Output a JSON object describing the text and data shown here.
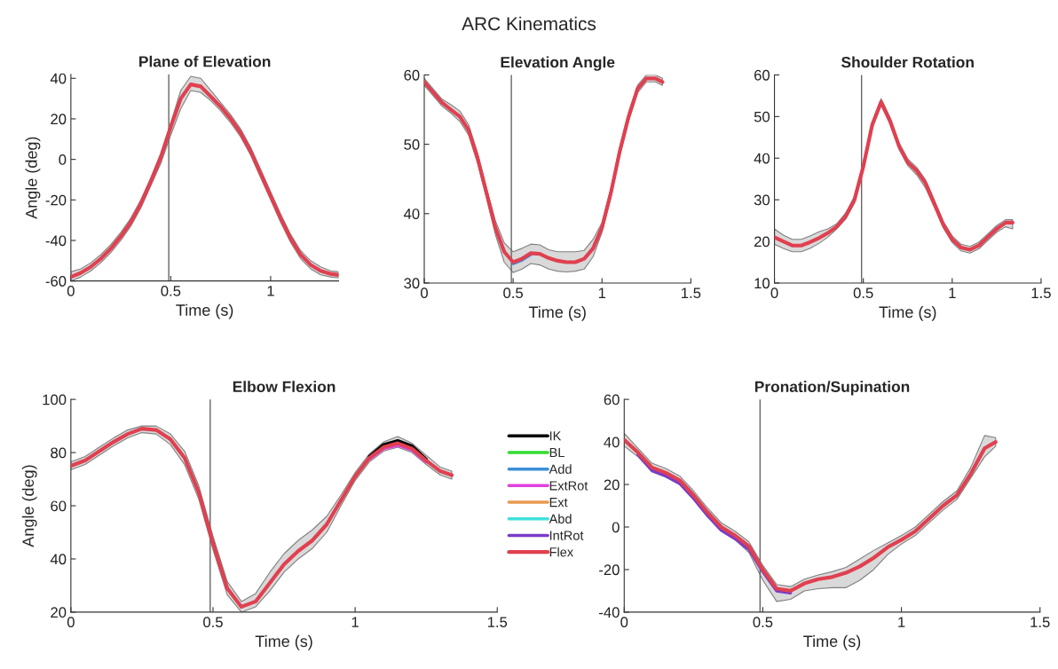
{
  "chart_data": [
    {
      "type": "other",
      "title": "ARC Kinematics"
    },
    {
      "type": "line",
      "title": "Plane of Elevation",
      "xlabel": "Time (s)",
      "ylabel": "Angle (deg)",
      "xlim": [
        0,
        1.34
      ],
      "ylim": [
        -60,
        42
      ],
      "xticks": [
        0,
        0.5,
        1
      ],
      "yticks": [
        -60,
        -40,
        -20,
        0,
        20,
        40
      ],
      "grid": false,
      "legend": false,
      "x": [
        0,
        0.05,
        0.1,
        0.15,
        0.2,
        0.25,
        0.3,
        0.35,
        0.4,
        0.45,
        0.5,
        0.55,
        0.6,
        0.65,
        0.7,
        0.75,
        0.8,
        0.85,
        0.9,
        0.95,
        1.0,
        1.05,
        1.1,
        1.15,
        1.2,
        1.25,
        1.3,
        1.34
      ],
      "ref_lines": [
        {
          "axis": "x",
          "value": 0.49,
          "color": "#666666"
        }
      ],
      "series": [
        {
          "color": "#e04050",
          "values": [
            -58,
            -56,
            -53,
            -49,
            -44,
            -38,
            -31,
            -22,
            -11,
            1,
            16,
            30,
            37,
            36,
            31,
            26,
            20,
            13,
            4,
            -7,
            -18,
            -29,
            -39,
            -47,
            -52,
            -55,
            -56.5,
            -57
          ],
          "lower": [
            -60,
            -58,
            -55,
            -51,
            -46,
            -40,
            -33,
            -24,
            -13,
            -2,
            12,
            25,
            34,
            33,
            29,
            24,
            18,
            11,
            2,
            -9,
            -20,
            -31,
            -41,
            -49,
            -54,
            -57,
            -58,
            -58.5
          ],
          "upper": [
            -55.5,
            -54,
            -51,
            -47,
            -42,
            -36,
            -29,
            -20,
            -9,
            3,
            18,
            34,
            41,
            40,
            34,
            28,
            22,
            15,
            6,
            -5,
            -16,
            -27,
            -37,
            -45,
            -50,
            -53,
            -55,
            -55.5
          ]
        }
      ]
    },
    {
      "type": "line",
      "title": "Elevation Angle",
      "xlabel": "Time (s)",
      "xlim": [
        0,
        1.5
      ],
      "ylim": [
        30,
        60
      ],
      "xticks": [
        0,
        0.5,
        1,
        1.5
      ],
      "yticks": [
        30,
        40,
        50,
        60
      ],
      "grid": false,
      "legend": false,
      "x": [
        0,
        0.05,
        0.1,
        0.15,
        0.2,
        0.25,
        0.3,
        0.35,
        0.4,
        0.45,
        0.5,
        0.55,
        0.6,
        0.65,
        0.7,
        0.75,
        0.8,
        0.85,
        0.9,
        0.95,
        1.0,
        1.05,
        1.1,
        1.15,
        1.2,
        1.25,
        1.3,
        1.34
      ],
      "ref_lines": [
        {
          "axis": "x",
          "value": 0.49,
          "color": "#666666"
        }
      ],
      "series": [
        {
          "color": "#3a8fd8",
          "x": [
            0.5,
            0.55,
            0.6
          ],
          "values": [
            32.8,
            33.3,
            34.1
          ]
        },
        {
          "color": "#e04050",
          "values": [
            59,
            57.5,
            56,
            55,
            54,
            52,
            48,
            43,
            38,
            34.5,
            33,
            33.5,
            34.3,
            34.2,
            33.6,
            33.2,
            33,
            33,
            33.5,
            35,
            38,
            43,
            49,
            54,
            58,
            59.5,
            59.5,
            59
          ],
          "lower": [
            58.5,
            57,
            55.5,
            54.5,
            53.3,
            51.3,
            47.3,
            42.3,
            37,
            33,
            31.5,
            32,
            32.8,
            32.6,
            32,
            31.7,
            31.6,
            31.7,
            32,
            33.8,
            37.3,
            42.4,
            48.4,
            53.4,
            57.4,
            59,
            59,
            58.5
          ],
          "upper": [
            59.5,
            58,
            56.5,
            55.7,
            54.8,
            52.8,
            48.7,
            43.7,
            39,
            35.8,
            34.5,
            35,
            35.6,
            35.5,
            34.8,
            34.5,
            34.5,
            34.5,
            34.7,
            36.3,
            38.7,
            43.6,
            49.6,
            54.6,
            58.5,
            60,
            60,
            59.5
          ]
        }
      ]
    },
    {
      "type": "line",
      "title": "Shoulder Rotation",
      "xlabel": "Time (s)",
      "xlim": [
        0,
        1.5
      ],
      "ylim": [
        10,
        60
      ],
      "xticks": [
        0,
        0.5,
        1,
        1.5
      ],
      "yticks": [
        10,
        20,
        30,
        40,
        50,
        60
      ],
      "grid": false,
      "legend": false,
      "x": [
        0,
        0.05,
        0.1,
        0.15,
        0.2,
        0.25,
        0.3,
        0.35,
        0.4,
        0.45,
        0.5,
        0.55,
        0.6,
        0.65,
        0.7,
        0.75,
        0.8,
        0.85,
        0.9,
        0.95,
        1.0,
        1.05,
        1.1,
        1.15,
        1.2,
        1.25,
        1.3,
        1.34
      ],
      "ref_lines": [
        {
          "axis": "x",
          "value": 0.49,
          "color": "#666666"
        }
      ],
      "series": [
        {
          "color": "#e04050",
          "values": [
            21,
            20,
            19,
            19,
            19.8,
            20.8,
            22,
            23.5,
            26,
            30,
            38,
            48,
            53.5,
            49,
            43,
            39,
            37,
            34,
            29,
            24,
            20.5,
            18.5,
            18,
            19,
            21,
            23,
            24.5,
            24.5
          ],
          "lower": [
            19.3,
            18.3,
            17.5,
            17.5,
            18.3,
            19.5,
            21,
            23,
            25.3,
            29.2,
            37.2,
            47.2,
            52.7,
            48.2,
            42.2,
            38.2,
            36,
            32.8,
            28.2,
            23.2,
            19.7,
            17.7,
            17.2,
            18.2,
            20.2,
            22.2,
            23.5,
            23
          ],
          "upper": [
            23,
            21.5,
            20.5,
            20.5,
            21.3,
            22.3,
            23,
            24.2,
            26.8,
            30.8,
            38.8,
            48.8,
            54.3,
            49.8,
            43.8,
            39.8,
            37.8,
            34.8,
            29.8,
            24.8,
            21.3,
            19.3,
            18.8,
            19.8,
            21.8,
            23.8,
            25.2,
            25.2
          ]
        }
      ]
    },
    {
      "type": "line",
      "title": "Elbow Flexion",
      "xlabel": "Time (s)",
      "ylabel": "Angle (deg)",
      "xlim": [
        0,
        1.5
      ],
      "ylim": [
        20,
        100
      ],
      "xticks": [
        0,
        0.5,
        1,
        1.5
      ],
      "yticks": [
        20,
        40,
        60,
        80,
        100
      ],
      "grid": false,
      "legend": "right",
      "x": [
        0,
        0.05,
        0.1,
        0.15,
        0.2,
        0.25,
        0.3,
        0.35,
        0.4,
        0.45,
        0.5,
        0.55,
        0.6,
        0.65,
        0.7,
        0.75,
        0.8,
        0.85,
        0.9,
        0.95,
        1.0,
        1.05,
        1.1,
        1.15,
        1.2,
        1.25,
        1.3,
        1.34
      ],
      "ref_lines": [
        {
          "axis": "x",
          "value": 0.49,
          "color": "#666666"
        }
      ],
      "series": [
        {
          "name": "IK",
          "color": "#000000",
          "x": [
            1.05,
            1.1,
            1.15,
            1.2,
            1.25
          ],
          "values": [
            78.5,
            83,
            84.5,
            82.5,
            77.5
          ]
        },
        {
          "name": "BL",
          "color": "#33dd33",
          "values": [
            null,
            null,
            null,
            null,
            null,
            null,
            null,
            null,
            null,
            null,
            null,
            null,
            null,
            null,
            null,
            null,
            null,
            null,
            null,
            null,
            null,
            null,
            null,
            null,
            null,
            null,
            null,
            null
          ]
        },
        {
          "name": "Add",
          "color": "#3a8fd8",
          "values": [
            null,
            null,
            null,
            null,
            null,
            null,
            null,
            null,
            null,
            null,
            null,
            null,
            null,
            null,
            null,
            null,
            null,
            null,
            null,
            null,
            null,
            null,
            null,
            null,
            null,
            null,
            null,
            null
          ]
        },
        {
          "name": "ExtRot",
          "color": "#e040e0",
          "x": [
            1.05,
            1.1,
            1.15,
            1.2,
            1.25
          ],
          "values": [
            77.5,
            81.5,
            82.8,
            81,
            76.5
          ]
        },
        {
          "name": "Ext",
          "color": "#e89a50",
          "values": [
            null,
            null,
            null,
            null,
            null,
            null,
            null,
            null,
            null,
            null,
            null,
            null,
            null,
            null,
            null,
            null,
            null,
            null,
            null,
            null,
            null,
            null,
            null,
            null,
            null,
            null,
            null,
            null
          ]
        },
        {
          "name": "Abd",
          "color": "#40e0e0",
          "values": [
            null,
            null,
            null,
            null,
            null,
            null,
            null,
            null,
            null,
            null,
            null,
            null,
            null,
            null,
            null,
            null,
            null,
            null,
            null,
            null,
            null,
            null,
            null,
            null,
            null,
            null,
            null,
            null
          ]
        },
        {
          "name": "IntRot",
          "color": "#7a3cc8",
          "values": [
            null,
            null,
            null,
            null,
            null,
            null,
            null,
            null,
            null,
            null,
            null,
            null,
            null,
            null,
            null,
            null,
            null,
            null,
            null,
            null,
            null,
            null,
            null,
            null,
            null,
            null,
            null,
            null
          ]
        },
        {
          "name": "Flex",
          "color": "#e04050",
          "values": [
            75,
            77,
            80.5,
            84,
            87,
            89,
            88.5,
            85,
            78,
            65,
            46,
            29,
            22,
            24,
            31,
            38,
            43,
            47,
            53,
            62,
            71,
            78,
            82,
            83.5,
            81.5,
            77,
            73,
            71.5
          ],
          "lower": [
            73.5,
            75.5,
            79,
            82.5,
            85.5,
            87.5,
            87,
            83,
            75.5,
            62.5,
            43.5,
            26.5,
            20,
            22,
            28,
            35,
            40,
            44,
            50,
            60,
            69.5,
            76.5,
            80.5,
            82,
            80,
            75.5,
            71.5,
            70
          ],
          "upper": [
            76.5,
            78.5,
            82,
            85.5,
            88.5,
            90,
            90,
            87,
            80.5,
            67.5,
            48.5,
            31.5,
            24,
            27,
            35,
            42,
            47,
            51,
            56,
            64,
            72.5,
            79.5,
            84,
            86,
            83.5,
            79,
            74.5,
            73
          ]
        }
      ]
    },
    {
      "type": "line",
      "title": "Pronation/Supination",
      "xlabel": "Time (s)",
      "xlim": [
        0,
        1.5
      ],
      "ylim": [
        -40,
        60
      ],
      "xticks": [
        0,
        0.5,
        1,
        1.5
      ],
      "yticks": [
        -40,
        -20,
        0,
        20,
        40,
        60
      ],
      "grid": false,
      "legend": false,
      "x": [
        0,
        0.05,
        0.1,
        0.15,
        0.2,
        0.25,
        0.3,
        0.35,
        0.4,
        0.45,
        0.5,
        0.55,
        0.6,
        0.65,
        0.7,
        0.75,
        0.8,
        0.85,
        0.9,
        0.95,
        1.0,
        1.05,
        1.1,
        1.15,
        1.2,
        1.25,
        1.3,
        1.34
      ],
      "ref_lines": [
        {
          "axis": "x",
          "value": 0.49,
          "color": "#666666"
        }
      ],
      "series": [
        {
          "color": "#7a3cc8",
          "x": [
            0.05,
            0.1,
            0.15,
            0.2,
            0.25,
            0.3,
            0.35,
            0.4,
            0.45,
            0.5,
            0.55,
            0.6
          ],
          "values": [
            34,
            26.5,
            24,
            20.5,
            13.5,
            5.5,
            -1.5,
            -5.5,
            -10.5,
            -21,
            -30,
            -31
          ]
        },
        {
          "color": "#e04050",
          "values": [
            41,
            35,
            28,
            25.5,
            22,
            15,
            7,
            0,
            -4,
            -9,
            -20,
            -29,
            -30,
            -26.5,
            -24.5,
            -23.5,
            -21.5,
            -18.5,
            -14.5,
            -9.5,
            -6,
            -2,
            4,
            10,
            15,
            25,
            37,
            40
          ],
          "lower": [
            38,
            33,
            26,
            23.5,
            20,
            13,
            5,
            -2,
            -6,
            -12,
            -25,
            -35,
            -34,
            -30,
            -29,
            -28.5,
            -28.5,
            -25,
            -20,
            -13,
            -8,
            -4,
            2,
            8,
            13,
            23,
            33,
            38
          ],
          "upper": [
            44,
            37,
            30,
            27.5,
            24,
            17,
            9,
            2,
            -2,
            -7,
            -18,
            -27,
            -28,
            -24.5,
            -22.5,
            -21,
            -19,
            -15,
            -11,
            -7.5,
            -4,
            0,
            6,
            12,
            17,
            28,
            43,
            42
          ]
        }
      ]
    }
  ]
}
